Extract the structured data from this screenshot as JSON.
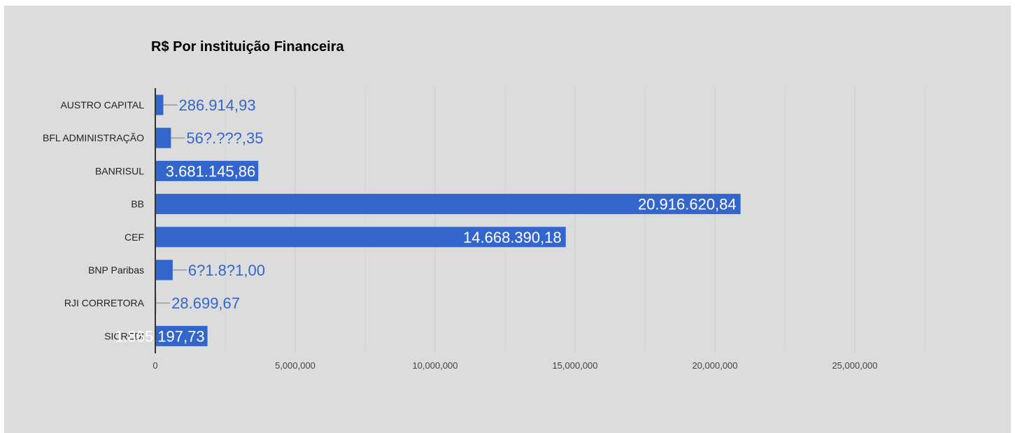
{
  "chart_data": {
    "type": "bar",
    "orientation": "horizontal",
    "title": "R$ Por instituição Financeira",
    "categories": [
      "AUSTRO CAPITAL",
      "BFL ADMINISTRAÇÃO",
      "BANRISUL",
      "BB",
      "CEF",
      "BNP Paribas",
      "RJI CORRETORA",
      "SICREDI"
    ],
    "values": [
      286914.93,
      560000,
      3681145.86,
      20916620.84,
      14668390.18,
      621831,
      28699.67,
      1865197.73
    ],
    "data_labels": [
      "286.914,93",
      "56?.???,35",
      "3.681.145,86",
      "20.916.620,84",
      "14.668.390,18",
      "6?1.8?1,00",
      "28.699,67",
      "1.865.197,73"
    ],
    "xlim": [
      0,
      30000000
    ],
    "x_ticks": [
      0,
      5000000,
      10000000,
      15000000,
      20000000,
      25000000
    ],
    "x_tick_labels": [
      "0",
      "5,000,000",
      "10,000,000",
      "15,000,000",
      "20,000,000",
      "25,000,000"
    ],
    "grid": true,
    "legend": "none",
    "colors": {
      "bar": "#3366cc",
      "label_outside": "#3366cc",
      "label_inside": "#ffffff",
      "background": "#dcdcdc",
      "gridline": "#c8c8c8",
      "axis": "#333333"
    }
  }
}
